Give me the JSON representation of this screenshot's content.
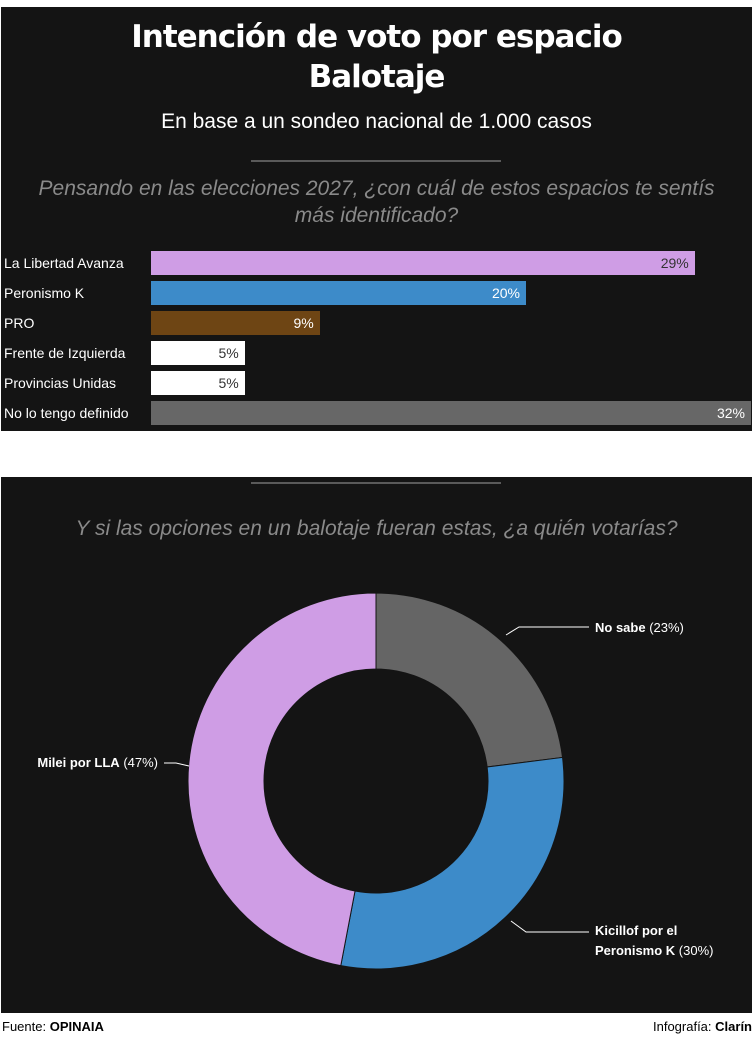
{
  "header": {
    "title_line1": "Intención de voto por espacio",
    "title_line2": "Balotaje",
    "subtitle": "En base a un sondeo nacional de 1.000 casos"
  },
  "bar_section": {
    "question_line1": "Pensando en las elecciones 2027, ¿con cuál de estos espacios te sentís",
    "question_line2": "más identificado?"
  },
  "donut_section": {
    "question": "Y si las opciones en un balotaje fueran estas, ¿a quién votarías?"
  },
  "chart_data": [
    {
      "type": "bar",
      "orientation": "horizontal",
      "categories": [
        "La Libertad Avanza",
        "Peronismo K",
        "PRO",
        "Frente de Izquierda",
        "Provincias Unidas",
        "No lo tengo definido"
      ],
      "values": [
        29,
        20,
        9,
        5,
        5,
        32
      ],
      "value_labels": [
        "29%",
        "20%",
        "9%",
        "5%",
        "5%",
        "32%"
      ],
      "colors": [
        "#cf9de5",
        "#3d8bc9",
        "#6e4514",
        "#ffffff",
        "#ffffff",
        "#676767"
      ],
      "xlim": [
        0,
        32
      ]
    },
    {
      "type": "pie",
      "style": "donut",
      "labels": [
        "No sabe",
        "Kicillof por el Peronismo K",
        "Milei por LLA"
      ],
      "label_lines": [
        [
          "No sabe"
        ],
        [
          "Kicillof por el",
          "Peronismo K"
        ],
        [
          "Milei por LLA"
        ]
      ],
      "values": [
        23,
        30,
        47
      ],
      "value_labels": [
        "(23%)",
        "(30%)",
        "(47%)"
      ],
      "colors": [
        "#656565",
        "#3d8bc9",
        "#cf9de5"
      ]
    }
  ],
  "footer": {
    "source_label": "Fuente:",
    "source_value": "OPINAIA",
    "credit_label": "Infografía:",
    "credit_value": "Clarín"
  }
}
